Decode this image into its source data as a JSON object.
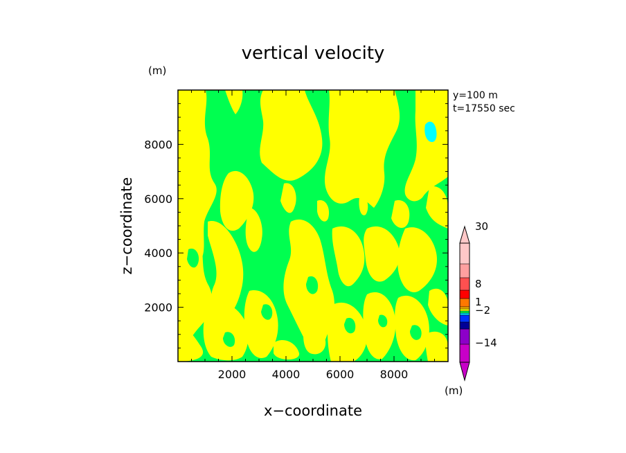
{
  "chart_data": {
    "type": "heatmap",
    "title": "vertical velocity",
    "y_unit_label": "(m)",
    "xlabel": "x−coordinate",
    "ylabel": "z−coordinate",
    "xlim": [
      0,
      10000
    ],
    "ylim": [
      0,
      10000
    ],
    "x_ticks": [
      {
        "value": 2000,
        "label": "2000"
      },
      {
        "value": 4000,
        "label": "4000"
      },
      {
        "value": 6000,
        "label": "6000"
      },
      {
        "value": 8000,
        "label": "8000"
      }
    ],
    "y_ticks": [
      {
        "value": 2000,
        "label": "2000"
      },
      {
        "value": 4000,
        "label": "4000"
      },
      {
        "value": 6000,
        "label": "6000"
      },
      {
        "value": 8000,
        "label": "8000"
      }
    ],
    "annotation_lines": [
      "y=100  m",
      "t=17550 sec"
    ],
    "colorbar": {
      "unit_label": "(m)",
      "labels": [
        {
          "value": 30,
          "label": "30"
        },
        {
          "value": 8,
          "label": "8"
        },
        {
          "value": 1,
          "label": "1"
        },
        {
          "value": -2,
          "label": "−2"
        },
        {
          "value": -14,
          "label": "−14"
        }
      ],
      "colors_bottom_to_top": [
        "#c800c8",
        "#8c00c8",
        "#000096",
        "#0032ff",
        "#00dcff",
        "#00ff50",
        "#ffff00",
        "#ffb400",
        "#ff7800",
        "#ff0000",
        "#ff5050",
        "#ffa0a0",
        "#ffc8c8"
      ],
      "end_colors": {
        "low": "#c800c8",
        "high": "#ffc8c8"
      }
    },
    "dominant_colors": {
      "updraft": "#ffff00",
      "neutral": "#00ff50",
      "downdraft_spot": "#00ffff"
    }
  }
}
